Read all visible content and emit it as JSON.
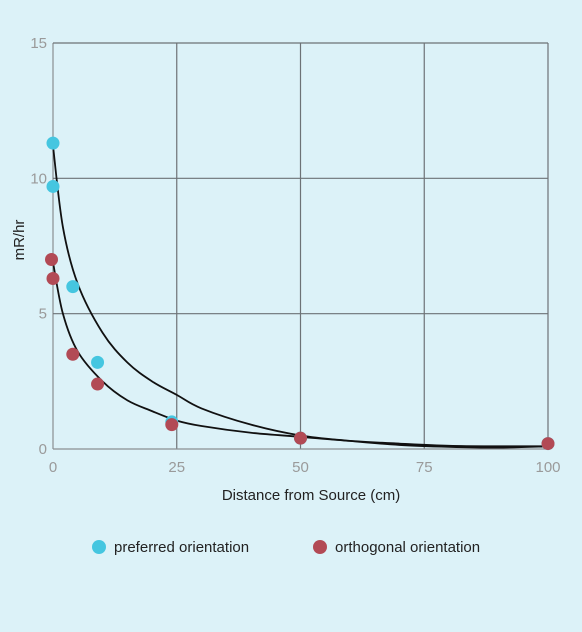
{
  "chart_data": {
    "type": "scatter",
    "xlabel": "Distance from Source (cm)",
    "ylabel": "mR/hr",
    "xlim": [
      0,
      100
    ],
    "ylim": [
      0,
      15
    ],
    "xticks": [
      0,
      25,
      50,
      75,
      100
    ],
    "yticks": [
      0,
      5,
      10,
      15
    ],
    "grid": true,
    "legend_position": "bottom",
    "series": [
      {
        "name": "preferred orientation",
        "color": "#45c6e0",
        "x": [
          0,
          0,
          4,
          9,
          24,
          50,
          100
        ],
        "y": [
          11.3,
          9.7,
          6.0,
          3.2,
          1.0,
          0.4,
          0.2
        ]
      },
      {
        "name": "orthogonal orientation",
        "color": "#b24a55",
        "x": [
          -0.3,
          0,
          4,
          9,
          24,
          50,
          100
        ],
        "y": [
          7.0,
          6.3,
          3.5,
          2.4,
          0.9,
          0.4,
          0.2
        ]
      }
    ],
    "trendlines": [
      {
        "series": "preferred orientation",
        "color": "#111111",
        "x": [
          0,
          2,
          5,
          10,
          15,
          20,
          25,
          30,
          40,
          50,
          60,
          70,
          80,
          90,
          100
        ],
        "y": [
          11.2,
          8.2,
          6.1,
          4.3,
          3.2,
          2.5,
          2.0,
          1.5,
          0.9,
          0.5,
          0.3,
          0.15,
          0.08,
          0.05,
          0.1
        ]
      },
      {
        "series": "orthogonal orientation",
        "color": "#111111",
        "x": [
          0,
          2,
          5,
          10,
          15,
          20,
          25,
          30,
          40,
          50,
          60,
          70,
          80,
          90,
          100
        ],
        "y": [
          6.9,
          5.0,
          3.6,
          2.5,
          1.8,
          1.4,
          1.05,
          0.85,
          0.6,
          0.45,
          0.3,
          0.2,
          0.12,
          0.1,
          0.1
        ]
      }
    ]
  }
}
